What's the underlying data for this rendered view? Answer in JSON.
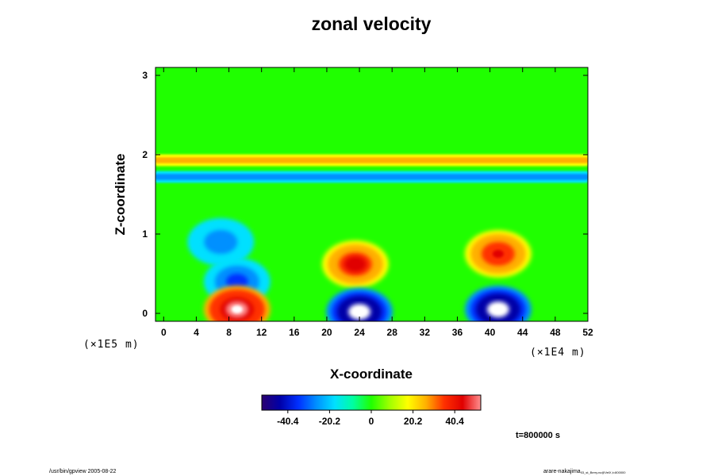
{
  "chart_data": {
    "type": "heatmap",
    "title": "zonal velocity",
    "xlabel": "X-coordinate",
    "ylabel": "Z-coordinate",
    "x_tick_labels": [
      "0",
      "4",
      "8",
      "12",
      "16",
      "20",
      "24",
      "28",
      "32",
      "36",
      "40",
      "44",
      "48",
      "52"
    ],
    "y_tick_labels": [
      "0",
      "1",
      "2",
      "3"
    ],
    "xlim": [
      -1,
      52
    ],
    "ylim": [
      -0.1,
      3.1
    ],
    "x_scale_label": "(×1E4 m)",
    "y_scale_label": "(×1E5 m)",
    "colorbar": {
      "tick_labels": [
        "-40.4",
        "-20.2",
        "0",
        "20.2",
        "40.4"
      ],
      "range": [
        -53,
        53
      ],
      "colors": [
        "#2a0070",
        "#0000a8",
        "#0030ff",
        "#0090ff",
        "#00e0ff",
        "#00ffa0",
        "#20ff00",
        "#a0ff00",
        "#ffff00",
        "#ffb000",
        "#ff3000",
        "#e00000",
        "#ff9090"
      ]
    },
    "features": [
      {
        "kind": "jet",
        "z": 1.93,
        "value": 30
      },
      {
        "kind": "jet",
        "z": 1.72,
        "value": -30
      },
      {
        "kind": "eddy",
        "x": 23.5,
        "z": 0.62,
        "value": 45
      },
      {
        "kind": "eddy",
        "x": 41,
        "z": 0.75,
        "value": 42
      },
      {
        "kind": "eddy",
        "x": 7,
        "z": 0.9,
        "value": -30
      },
      {
        "kind": "eddy",
        "x": 9,
        "z": 0.4,
        "value": -38
      },
      {
        "kind": "eddy",
        "x": 24,
        "z": 0.02,
        "value": -60
      },
      {
        "kind": "eddy",
        "x": 41,
        "z": 0.05,
        "value": -60
      },
      {
        "kind": "eddy",
        "x": 9,
        "z": 0.05,
        "value": 55
      }
    ],
    "grid": false,
    "annotation": "t=800000 s"
  },
  "footer": {
    "left_text": "/usr/bin/gpview 2005-08-22",
    "right_text": "arare-nakajima",
    "right_subtext": "03_st_Berry.nc@VelX,t=800000"
  }
}
